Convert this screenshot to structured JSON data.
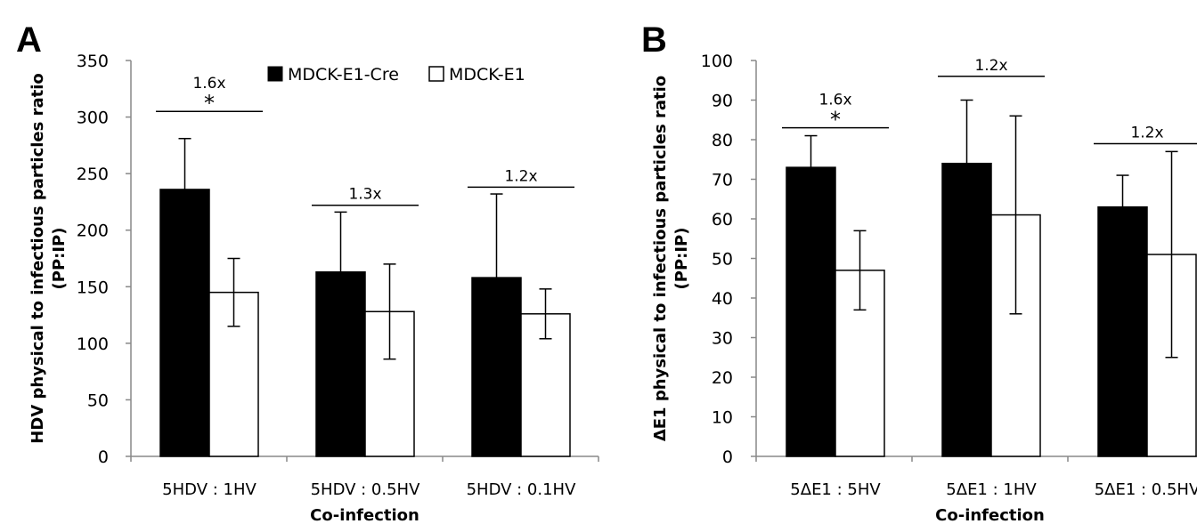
{
  "chart_data": [
    {
      "type": "bar",
      "panel_label": "A",
      "ylabel_line1": "HDV physical to infectious particles ratio",
      "ylabel_line2": "(PP:IP)",
      "xlabel": "Co-infection",
      "ylim": [
        0,
        350
      ],
      "yticks": [
        "0",
        "50",
        "100",
        "150",
        "200",
        "250",
        "300",
        "350"
      ],
      "categories": [
        "5HDV : 1HV",
        "5HDV : 0.5HV",
        "5HDV : 0.1HV"
      ],
      "legend_position": "top-right",
      "series": [
        {
          "name": "MDCK-E1-Cre",
          "color": "#000000",
          "values": [
            236,
            163,
            158
          ],
          "errors": [
            45,
            53,
            74
          ]
        },
        {
          "name": "MDCK-E1",
          "color": "#ffffff",
          "values": [
            145,
            128,
            126
          ],
          "errors": [
            30,
            42,
            22
          ]
        }
      ],
      "annotations": [
        {
          "category": 0,
          "level": 305,
          "text": "1.6x",
          "star": "*"
        },
        {
          "category": 1,
          "level": 222,
          "text": "1.3x",
          "star": ""
        },
        {
          "category": 2,
          "level": 238,
          "text": "1.2x",
          "star": ""
        }
      ]
    },
    {
      "type": "bar",
      "panel_label": "B",
      "ylabel_line1": "ΔE1 physical to infectious particles ratio",
      "ylabel_line2": "(PP:IP)",
      "xlabel": "Co-infection",
      "ylim": [
        0,
        100
      ],
      "yticks": [
        "0",
        "10",
        "20",
        "30",
        "40",
        "50",
        "60",
        "70",
        "80",
        "90",
        "100"
      ],
      "categories": [
        "5ΔE1 : 5HV",
        "5ΔE1 : 1HV",
        "5ΔE1 : 0.5HV"
      ],
      "legend_position": "none",
      "series": [
        {
          "name": "MDCK-E1-Cre",
          "color": "#000000",
          "values": [
            73,
            74,
            63
          ],
          "errors": [
            8,
            16,
            8
          ]
        },
        {
          "name": "MDCK-E1",
          "color": "#ffffff",
          "values": [
            47,
            61,
            51
          ],
          "errors": [
            10,
            25,
            26
          ]
        }
      ],
      "annotations": [
        {
          "category": 0,
          "level": 83,
          "text": "1.6x",
          "star": "*"
        },
        {
          "category": 1,
          "level": 96,
          "text": "1.2x",
          "star": ""
        },
        {
          "category": 2,
          "level": 79,
          "text": "1.2x",
          "star": ""
        }
      ]
    }
  ]
}
